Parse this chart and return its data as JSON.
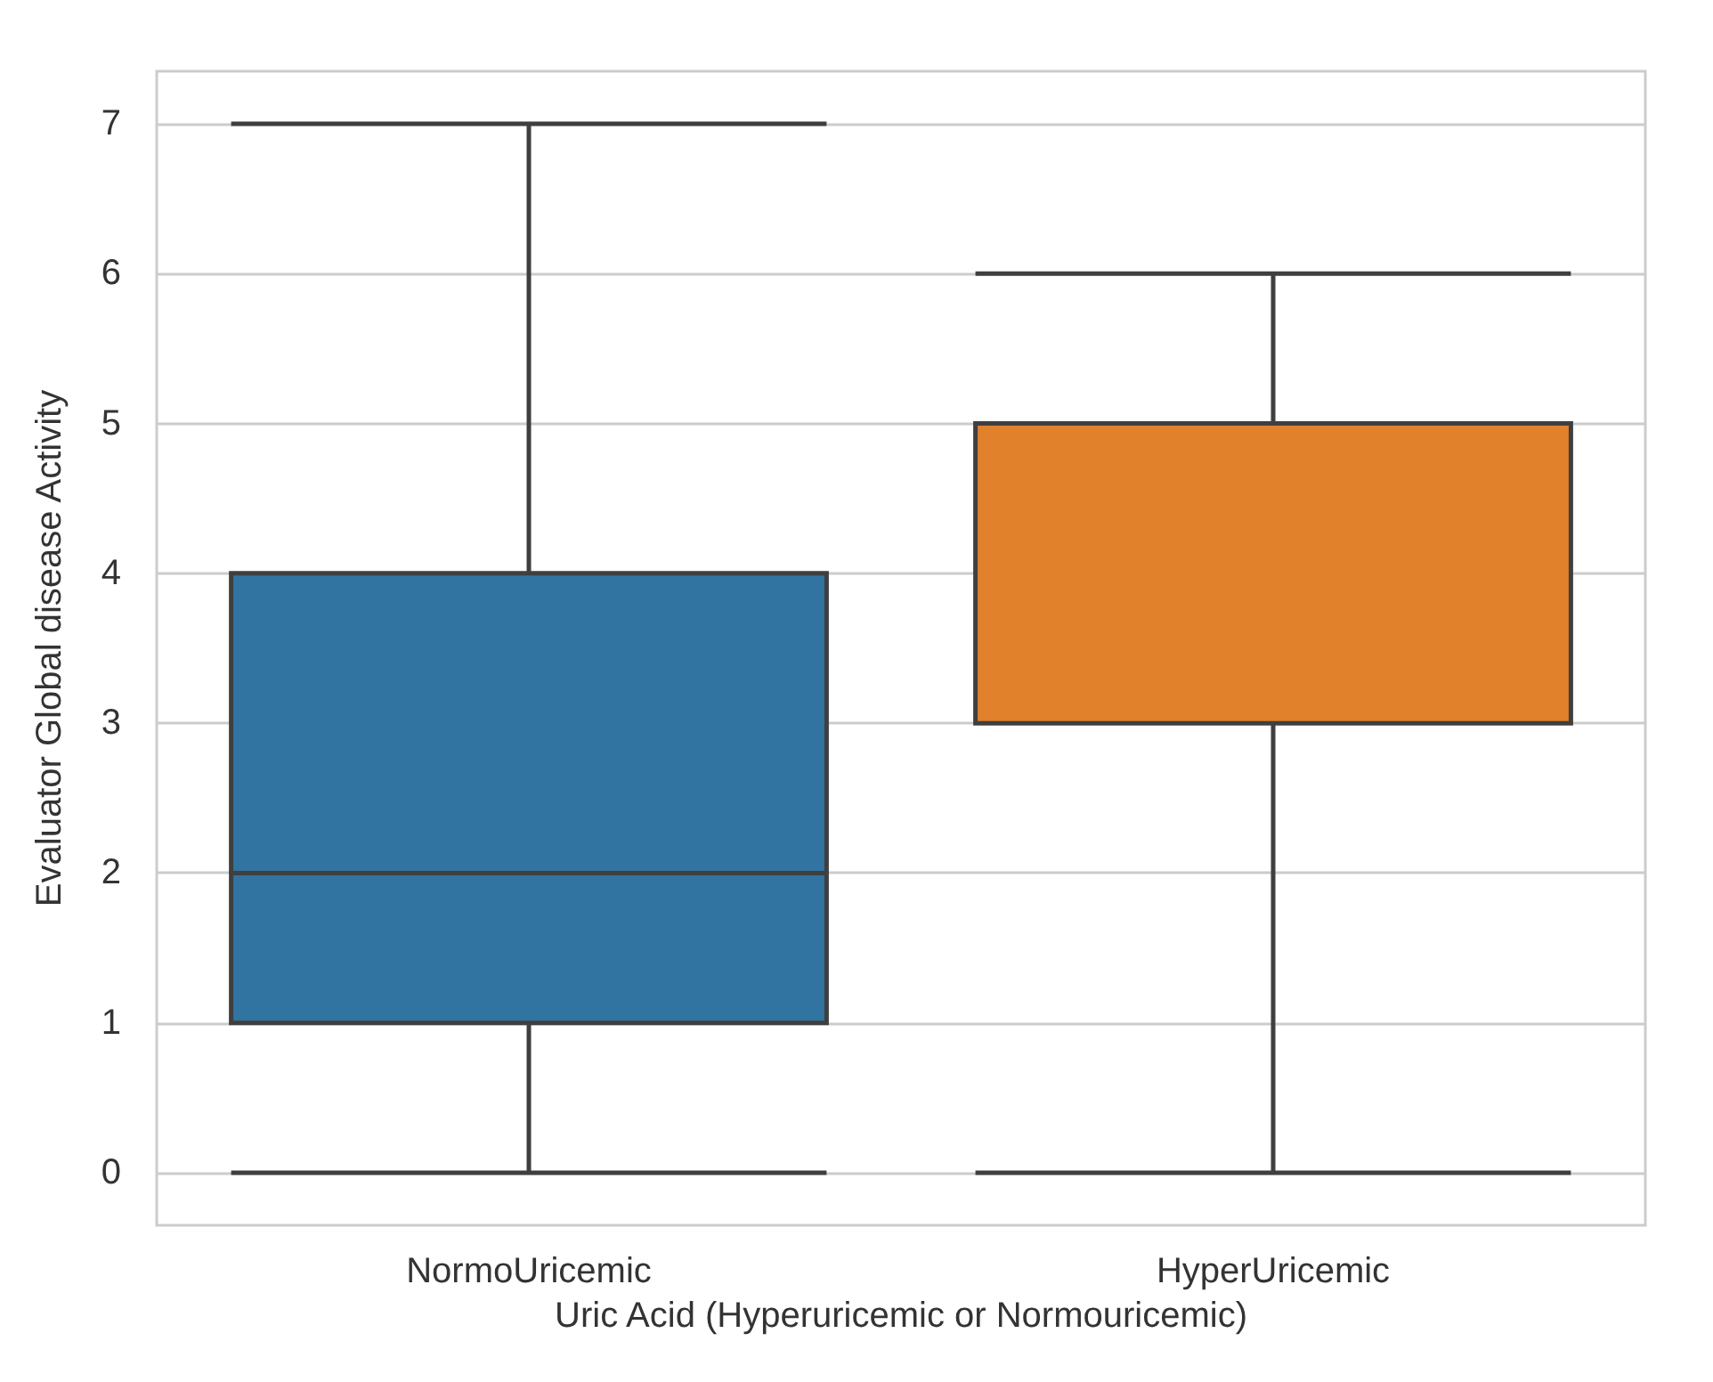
{
  "chart_data": {
    "type": "box",
    "xlabel": "Uric Acid (Hyperuricemic or Normouricemic)",
    "ylabel": "Evaluator Global disease Activity",
    "categories": [
      "NormoUricemic",
      "HyperUricemic"
    ],
    "boxes": [
      {
        "low": 0,
        "q1": 1,
        "median": 2,
        "q3": 4,
        "high": 7
      },
      {
        "low": 0,
        "q1": 3,
        "median": 5,
        "q3": 5,
        "high": 6
      }
    ],
    "colors": [
      "#3274a1",
      "#e1812c"
    ],
    "ylim": [
      -0.35,
      7.35
    ],
    "yticks": [
      0,
      1,
      2,
      3,
      4,
      5,
      6,
      7
    ],
    "grid": "y"
  }
}
